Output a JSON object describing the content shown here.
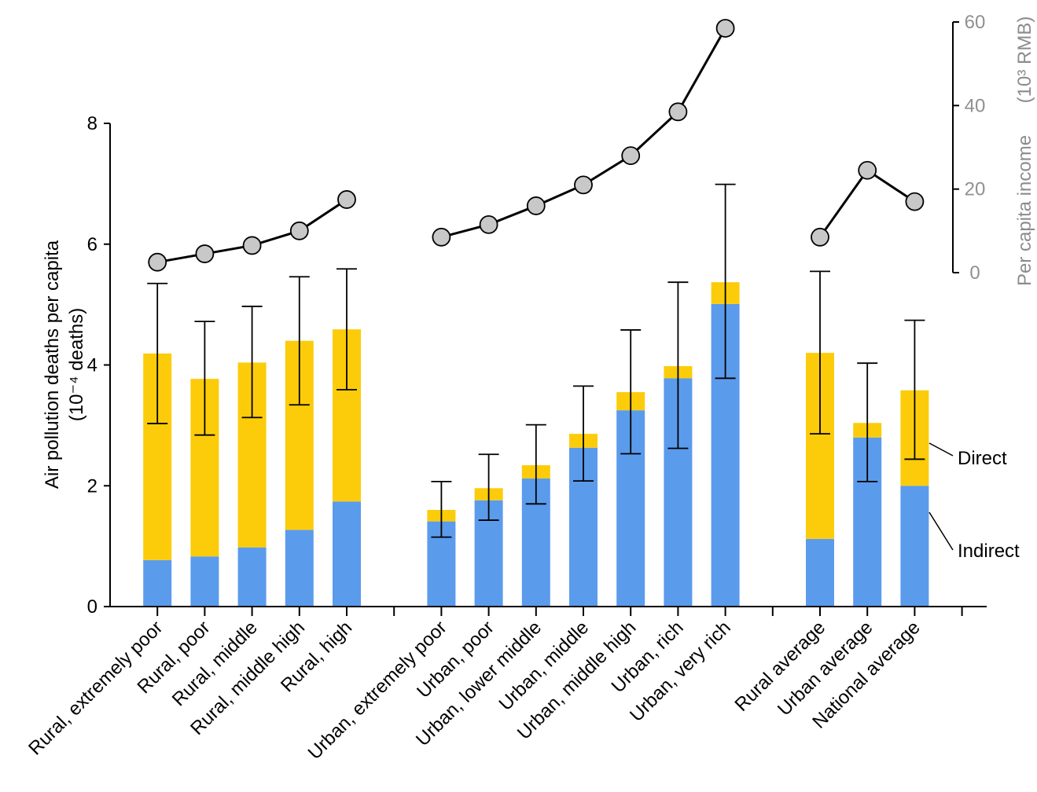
{
  "chart_data": {
    "type": "bar",
    "stacked": true,
    "categories": [
      "Rural, extremely poor",
      "Rural, poor",
      "Rural, middle",
      "Rural, middle high",
      "Rural, high",
      "Urban, extremely poor",
      "Urban, poor",
      "Urban, lower middle",
      "Urban, middle",
      "Urban, middle high",
      "Urban, rich",
      "Urban, very rich",
      "Rural average",
      "Urban average",
      "National average"
    ],
    "groups": [
      {
        "members": [
          0,
          1,
          2,
          3,
          4
        ]
      },
      {
        "members": [
          5,
          6,
          7,
          8,
          9,
          10,
          11
        ]
      },
      {
        "members": [
          12,
          13,
          14
        ]
      }
    ],
    "ylabel": "Air pollution deaths per capita",
    "ylabel_unit": "(10⁻⁴ deaths)",
    "ylim": [
      0,
      8
    ],
    "yticks": [
      "0",
      "2",
      "4",
      "6",
      "8"
    ],
    "series": [
      {
        "name": "Indirect",
        "color": "#5b9bec",
        "values": [
          0.77,
          0.83,
          0.98,
          1.27,
          1.74,
          1.41,
          1.76,
          2.12,
          2.63,
          3.25,
          3.78,
          5.01,
          1.12,
          2.8,
          2.0
        ]
      },
      {
        "name": "Direct",
        "color": "#fccc0a",
        "values": [
          3.42,
          2.94,
          3.06,
          3.13,
          2.85,
          0.19,
          0.2,
          0.22,
          0.23,
          0.3,
          0.2,
          0.36,
          3.08,
          0.24,
          1.58
        ]
      }
    ],
    "error_bars": {
      "low": [
        3.03,
        2.84,
        3.13,
        3.34,
        3.59,
        1.15,
        1.43,
        1.7,
        2.08,
        2.53,
        2.62,
        3.78,
        2.86,
        2.07,
        2.44
      ],
      "high": [
        5.35,
        4.72,
        4.97,
        5.46,
        5.59,
        2.07,
        2.52,
        3.01,
        3.65,
        4.58,
        5.37,
        6.99,
        5.55,
        4.03,
        4.74
      ]
    },
    "income_series": {
      "label": "Per capita income",
      "label_unit": "(10³ RMB)",
      "color": "#909090",
      "ylim": [
        0,
        60
      ],
      "yticks": [
        "0",
        "20",
        "40",
        "60"
      ],
      "values": [
        2.5,
        4.5,
        6.5,
        10,
        17.5,
        8.5,
        11.5,
        16,
        21,
        28,
        38.5,
        58.5,
        8.5,
        24.5,
        17
      ]
    },
    "annotations": [
      {
        "text": "Direct",
        "series": "Direct"
      },
      {
        "text": "Indirect",
        "series": "Indirect"
      }
    ]
  }
}
